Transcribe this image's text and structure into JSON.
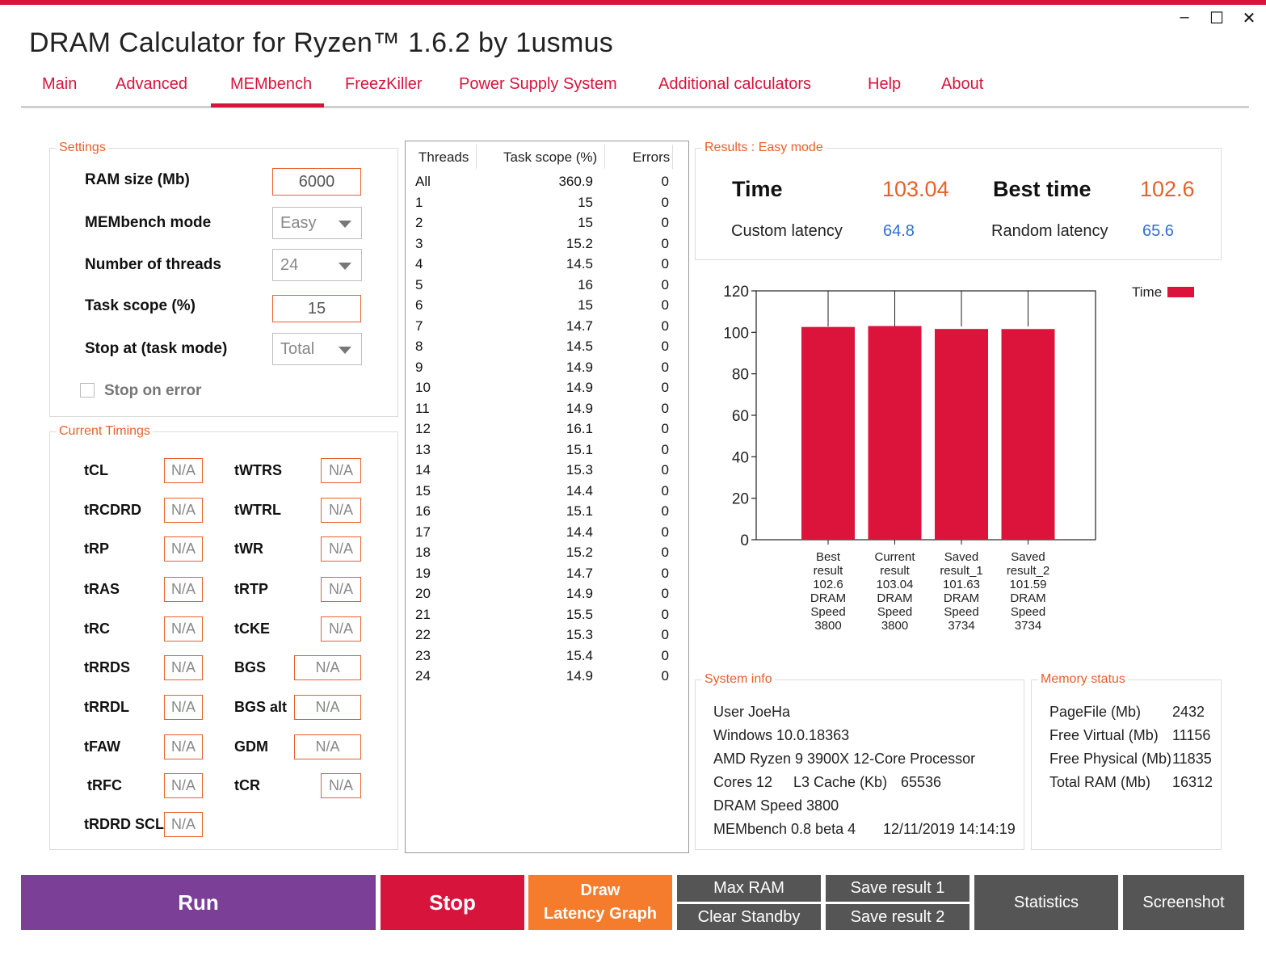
{
  "app": {
    "title": "DRAM Calculator for Ryzen™ 1.6.2 by 1usmus",
    "window_controls": {
      "minimize": "–",
      "maximize": "☐",
      "close": "✕"
    }
  },
  "tabs": [
    "Main",
    "Advanced",
    "MEMbench",
    "FreezKiller",
    "Power Supply System",
    "Additional calculators",
    "Help",
    "About"
  ],
  "active_tab": "MEMbench",
  "settings": {
    "legend": "Settings",
    "ram_size_label": "RAM size (Mb)",
    "ram_size_value": "6000",
    "mode_label": "MEMbench mode",
    "mode_value": "Easy",
    "threads_label": "Number of threads",
    "threads_value": "24",
    "task_scope_label": "Task scope (%)",
    "task_scope_value": "15",
    "stop_at_label": "Stop at (task mode)",
    "stop_at_value": "Total",
    "stop_on_error_label": "Stop on error",
    "stop_on_error_checked": false
  },
  "timings": {
    "legend": "Current Timings",
    "left": [
      {
        "label": "tCL",
        "value": "N/A"
      },
      {
        "label": "tRCDRD",
        "value": "N/A"
      },
      {
        "label": "tRP",
        "value": "N/A"
      },
      {
        "label": "tRAS",
        "value": "N/A"
      },
      {
        "label": "tRC",
        "value": "N/A"
      },
      {
        "label": "tRRDS",
        "value": "N/A"
      },
      {
        "label": "tRRDL",
        "value": "N/A"
      },
      {
        "label": "tFAW",
        "value": "N/A"
      },
      {
        "label": "tRFC",
        "value": "N/A"
      },
      {
        "label": "tRDRD SCL",
        "value": "N/A"
      }
    ],
    "right": [
      {
        "label": "tWTRS",
        "value": "N/A"
      },
      {
        "label": "tWTRL",
        "value": "N/A"
      },
      {
        "label": "tWR",
        "value": "N/A"
      },
      {
        "label": "tRTP",
        "value": "N/A"
      },
      {
        "label": "tCKE",
        "value": "N/A"
      },
      {
        "label": "BGS",
        "value": "N/A"
      },
      {
        "label": "BGS alt",
        "value": "N/A"
      },
      {
        "label": "GDM",
        "value": "N/A"
      },
      {
        "label": "tCR",
        "value": "N/A"
      }
    ]
  },
  "threads_table": {
    "headers": [
      "Threads",
      "Task scope (%)",
      "Errors"
    ],
    "rows": [
      [
        "All",
        "360.9",
        "0"
      ],
      [
        "1",
        "15",
        "0"
      ],
      [
        "2",
        "15",
        "0"
      ],
      [
        "3",
        "15.2",
        "0"
      ],
      [
        "4",
        "14.5",
        "0"
      ],
      [
        "5",
        "16",
        "0"
      ],
      [
        "6",
        "15",
        "0"
      ],
      [
        "7",
        "14.7",
        "0"
      ],
      [
        "8",
        "14.5",
        "0"
      ],
      [
        "9",
        "14.9",
        "0"
      ],
      [
        "10",
        "14.9",
        "0"
      ],
      [
        "11",
        "14.9",
        "0"
      ],
      [
        "12",
        "16.1",
        "0"
      ],
      [
        "13",
        "15.1",
        "0"
      ],
      [
        "14",
        "15.3",
        "0"
      ],
      [
        "15",
        "14.4",
        "0"
      ],
      [
        "16",
        "15.1",
        "0"
      ],
      [
        "17",
        "14.4",
        "0"
      ],
      [
        "18",
        "15.2",
        "0"
      ],
      [
        "19",
        "14.7",
        "0"
      ],
      [
        "20",
        "14.9",
        "0"
      ],
      [
        "21",
        "15.5",
        "0"
      ],
      [
        "22",
        "15.3",
        "0"
      ],
      [
        "23",
        "15.4",
        "0"
      ],
      [
        "24",
        "14.9",
        "0"
      ]
    ]
  },
  "results": {
    "legend": "Results : Easy mode",
    "time_label": "Time",
    "time_value": "103.04",
    "best_time_label": "Best time",
    "best_time_value": "102.6",
    "custom_latency_label": "Custom latency",
    "custom_latency_value": "64.8",
    "random_latency_label": "Random latency",
    "random_latency_value": "65.6"
  },
  "chart_data": {
    "type": "bar",
    "categories": [
      [
        "Best",
        "result",
        "102.6",
        "DRAM",
        "Speed",
        "3800"
      ],
      [
        "Current",
        "result",
        "103.04",
        "DRAM",
        "Speed",
        "3800"
      ],
      [
        "Saved",
        "result_1",
        "101.63",
        "DRAM",
        "Speed",
        "3734"
      ],
      [
        "Saved",
        "result_2",
        "101.59",
        "DRAM",
        "Speed",
        "3734"
      ]
    ],
    "series": [
      {
        "name": "Time",
        "values": [
          102.6,
          103.04,
          101.63,
          101.59
        ],
        "color": "#dc143c"
      }
    ],
    "ylim": [
      0,
      120
    ],
    "yticks": [
      0,
      20,
      40,
      60,
      80,
      100,
      120
    ],
    "legend_position": "top-right",
    "grid": false
  },
  "system_info": {
    "legend": "System info",
    "user": "User JoeHa",
    "os": "Windows 10.0.18363",
    "cpu": "AMD Ryzen 9 3900X 12-Core Processor",
    "cores": "Cores 12",
    "l3_label": "L3 Cache (Kb)",
    "l3_value": "65536",
    "dram_speed": "DRAM Speed 3800",
    "membench_version": "MEMbench 0.8 beta 4",
    "datetime": "12/11/2019 14:14:19"
  },
  "memory_status": {
    "legend": "Memory status",
    "rows": [
      {
        "label": "PageFile (Mb)",
        "value": "2432"
      },
      {
        "label": "Free Virtual (Mb)",
        "value": "11156"
      },
      {
        "label": "Free Physical (Mb)",
        "value": "11835"
      },
      {
        "label": "Total RAM (Mb)",
        "value": "16312"
      }
    ]
  },
  "buttons": {
    "run": "Run",
    "stop": "Stop",
    "draw_line1": "Draw",
    "draw_line2": "Latency Graph",
    "max_ram": "Max RAM",
    "clear_standby": "Clear Standby",
    "save_result_1": "Save result 1",
    "save_result_2": "Save result 2",
    "statistics": "Statistics",
    "screenshot": "Screenshot"
  },
  "colors": {
    "accent_red": "#d7143c",
    "accent_orange": "#e8602a",
    "run_purple": "#7b3f98",
    "draw_orange": "#f47c2c",
    "button_gray": "#555555",
    "latency_blue": "#2f6fd0"
  }
}
